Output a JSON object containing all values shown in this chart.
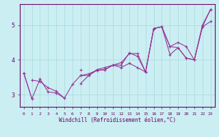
{
  "xlabel": "Windchill (Refroidissement éolien,°C)",
  "background_color": "#cbeef3",
  "line_color": "#993399",
  "grid_color": "#aadddd",
  "axis_color": "#660066",
  "text_color": "#660066",
  "xlim": [
    -0.5,
    23.5
  ],
  "ylim": [
    2.65,
    5.6
  ],
  "yticks": [
    3,
    4,
    5
  ],
  "xticks": [
    0,
    1,
    2,
    3,
    4,
    5,
    6,
    7,
    8,
    9,
    10,
    11,
    12,
    13,
    14,
    15,
    16,
    17,
    18,
    19,
    20,
    21,
    22,
    23
  ],
  "series": [
    [
      3.62,
      2.88,
      null,
      null,
      null,
      null,
      null,
      3.72,
      null,
      null,
      null,
      null,
      null,
      null,
      null,
      null,
      null,
      null,
      null,
      null,
      null,
      null,
      null,
      null
    ],
    [
      3.62,
      2.88,
      3.45,
      3.08,
      3.05,
      2.9,
      null,
      3.55,
      3.55,
      3.7,
      3.72,
      3.85,
      3.78,
      3.9,
      3.78,
      3.65,
      4.9,
      4.95,
      4.15,
      4.35,
      4.05,
      4.0,
      4.95,
      5.1
    ],
    [
      null,
      3.42,
      3.38,
      3.2,
      3.1,
      2.9,
      3.3,
      3.55,
      3.6,
      3.7,
      3.72,
      3.85,
      3.85,
      4.2,
      4.1,
      3.65,
      4.9,
      4.95,
      4.38,
      4.35,
      4.05,
      4.0,
      4.95,
      5.45
    ],
    [
      null,
      null,
      null,
      null,
      null,
      null,
      null,
      3.32,
      3.55,
      3.72,
      3.78,
      3.85,
      3.92,
      4.18,
      4.18,
      3.65,
      4.9,
      4.95,
      4.38,
      4.5,
      4.38,
      4.0,
      5.0,
      5.45
    ]
  ]
}
